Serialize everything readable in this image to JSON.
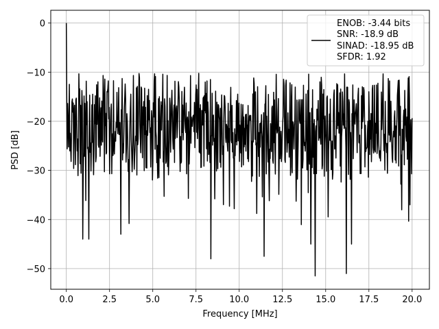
{
  "chart_data": {
    "type": "line",
    "xlabel": "Frequency [MHz]",
    "ylabel": "PSD [dB]",
    "xlim": [
      -0.9,
      21.0
    ],
    "ylim": [
      -54.2,
      2.6
    ],
    "xticks": [
      0.0,
      2.5,
      5.0,
      7.5,
      10.0,
      12.5,
      15.0,
      17.5,
      20.0
    ],
    "xtick_labels": [
      "0.0",
      "2.5",
      "5.0",
      "7.5",
      "10.0",
      "12.5",
      "15.0",
      "17.5",
      "20.0"
    ],
    "yticks": [
      0,
      -10,
      -20,
      -30,
      -40,
      -50
    ],
    "ytick_labels": [
      "0",
      "−10",
      "−20",
      "−30",
      "−40",
      "−50"
    ],
    "grid": true,
    "legend_position": "top-right",
    "legend_entries": [
      "ENOB: -3.44 bits",
      "SNR: -18.9 dB",
      "SINAD: -18.95 dB",
      "SFDR: 1.92"
    ],
    "colors": {
      "line": "#000000",
      "grid": "#b0b0b0"
    },
    "series": [
      {
        "x_start": 0.0,
        "x_end": 20.0,
        "points": 800,
        "peak": {
          "x": 0.0,
          "y": 0.0
        },
        "noise_band": {
          "typical_min": -32,
          "typical_max": -10,
          "mean": -21
        },
        "notable_minima": [
          {
            "x": 0.95,
            "y": -44
          },
          {
            "x": 1.3,
            "y": -44
          },
          {
            "x": 3.15,
            "y": -43
          },
          {
            "x": 8.35,
            "y": -48
          },
          {
            "x": 11.45,
            "y": -47.5
          },
          {
            "x": 14.4,
            "y": -51.5
          },
          {
            "x": 14.15,
            "y": -45
          },
          {
            "x": 16.2,
            "y": -51
          },
          {
            "x": 16.5,
            "y": -45
          }
        ]
      }
    ]
  }
}
